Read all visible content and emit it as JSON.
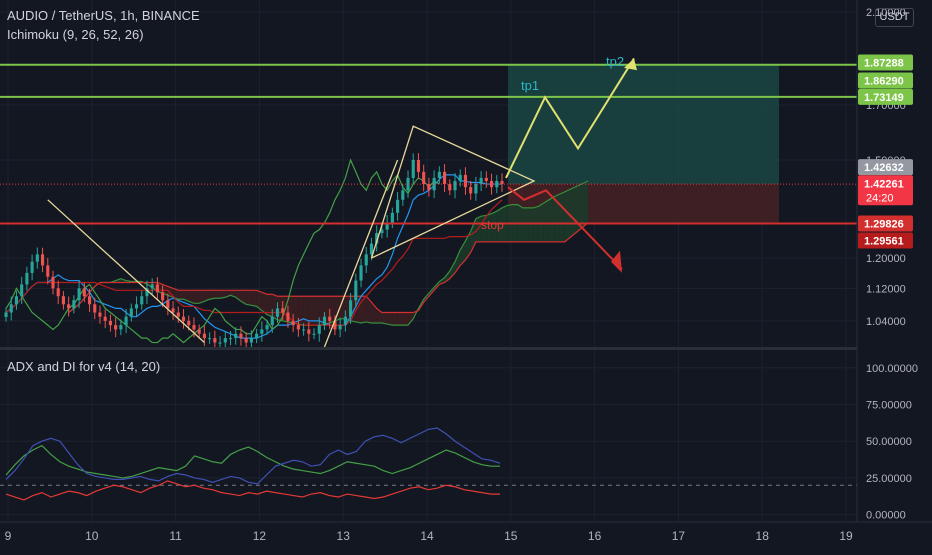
{
  "header": {
    "symbol_line": "AUDIO / TetherUS, 1h, BINANCE",
    "indicator_line": "Ichimoku (9, 26, 52, 26)",
    "currency_badge": "USDT"
  },
  "colors": {
    "background": "#131722",
    "grid": "#1e222d",
    "candle_up": "#26a69a",
    "candle_down": "#ef5350",
    "cloud_bull": "#1b3a2a",
    "cloud_bear": "#3a1e22",
    "tenkan": "#2196f3",
    "kijun": "#b71c1c",
    "chikou": "#43a047",
    "span_a": "#388e3c",
    "span_b": "#d32f2f",
    "drawing": "#e8d89a",
    "target_line": "#7cc548",
    "stop_line": "#d32f2f",
    "long_profit_zone": "#1a4a45",
    "long_stop_zone": "#4a2326",
    "adx": "#43a047",
    "di_plus": "#3f51b5",
    "di_minus": "#e53935"
  },
  "annotations": {
    "tp1": "tp1",
    "tp2": "tp2",
    "stop": "stop"
  },
  "chart_data": [
    {
      "type": "candlestick",
      "title": "AUDIO / TetherUS, 1h, BINANCE",
      "x_axis": {
        "tick_labels": [
          "9",
          "10",
          "11",
          "12",
          "13",
          "14",
          "15",
          "16",
          "17",
          "18",
          "19"
        ]
      },
      "y_axis": {
        "scale": "log",
        "range": [
          0.98,
          2.12
        ],
        "tick_labels": [
          "2.10000",
          "1.70000",
          "1.50000",
          "1.20000",
          "1.12000",
          "1.04000"
        ],
        "tick_values": [
          2.1,
          1.7,
          1.5,
          1.2,
          1.12,
          1.04
        ]
      },
      "price_labels": [
        {
          "text": "1.87288",
          "value": 1.87288,
          "color": "#7cc548"
        },
        {
          "text": "1.86290",
          "value": 1.8629,
          "color": "#7cc548"
        },
        {
          "text": "1.73149",
          "value": 1.73149,
          "color": "#7cc548"
        },
        {
          "text": "1.42632",
          "value": 1.42632,
          "color": "#9598a1"
        },
        {
          "text": "1.42261",
          "sub": "24:20",
          "value": 1.42261,
          "color": "#f23645"
        },
        {
          "text": "1.29826",
          "value": 1.29826,
          "color": "#d32f2f"
        },
        {
          "text": "1.29561",
          "value": 1.29561,
          "color": "#b71c1c"
        }
      ],
      "horizontal_lines": [
        {
          "name": "tp2",
          "value": 1.8629
        },
        {
          "name": "tp1",
          "value": 1.73149
        },
        {
          "name": "stop",
          "value": 1.29826
        }
      ],
      "closes": [
        1.06,
        1.08,
        1.1,
        1.13,
        1.16,
        1.19,
        1.21,
        1.18,
        1.15,
        1.12,
        1.1,
        1.08,
        1.07,
        1.09,
        1.12,
        1.1,
        1.08,
        1.06,
        1.05,
        1.04,
        1.03,
        1.02,
        1.03,
        1.05,
        1.07,
        1.08,
        1.1,
        1.12,
        1.13,
        1.11,
        1.09,
        1.07,
        1.06,
        1.05,
        1.04,
        1.03,
        1.02,
        1.01,
        1.0,
        1.0,
        0.99,
        0.99,
        1.0,
        1.0,
        1.01,
        1.0,
        0.99,
        1.0,
        1.01,
        1.02,
        1.03,
        1.05,
        1.07,
        1.06,
        1.04,
        1.03,
        1.02,
        1.02,
        1.01,
        1.01,
        1.03,
        1.05,
        1.04,
        1.02,
        1.03,
        1.05,
        1.09,
        1.14,
        1.18,
        1.21,
        1.24,
        1.27,
        1.28,
        1.3,
        1.33,
        1.37,
        1.4,
        1.44,
        1.5,
        1.46,
        1.42,
        1.4,
        1.44,
        1.46,
        1.42,
        1.4,
        1.43,
        1.45,
        1.41,
        1.39,
        1.42,
        1.44,
        1.43,
        1.41,
        1.43,
        1.42
      ],
      "ichimoku_span_a_end": 1.43,
      "ichimoku_span_b_end": 1.3
    },
    {
      "type": "line",
      "title": "ADX and DI for v4 (14, 20)",
      "y_axis": {
        "range": [
          -5,
          108
        ],
        "tick_labels": [
          "100.00000",
          "75.00000",
          "50.00000",
          "25.00000",
          "0.00000"
        ],
        "tick_values": [
          100,
          75,
          50,
          25,
          0
        ],
        "reference_line": 20
      },
      "series": [
        {
          "key": "adx",
          "values": [
            27,
            34,
            40,
            44,
            47,
            41,
            36,
            33,
            31,
            29,
            28,
            27,
            26,
            25,
            26,
            28,
            30,
            32,
            31,
            30,
            33,
            40,
            38,
            36,
            35,
            41,
            44,
            46,
            43,
            39,
            36,
            33,
            31,
            30,
            29,
            28,
            30,
            33,
            36,
            35,
            34,
            33,
            30,
            28,
            30,
            32,
            35,
            38,
            41,
            44,
            42,
            39,
            36,
            34,
            33,
            33
          ]
        },
        {
          "key": "di_plus",
          "values": [
            24,
            30,
            38,
            47,
            50,
            52,
            50,
            42,
            34,
            28,
            26,
            25,
            24,
            24,
            25,
            26,
            24,
            23,
            26,
            28,
            27,
            25,
            24,
            22,
            24,
            26,
            25,
            22,
            21,
            27,
            33,
            35,
            37,
            36,
            33,
            34,
            41,
            44,
            41,
            43,
            50,
            53,
            54,
            52,
            49,
            52,
            55,
            58,
            59,
            55,
            50,
            46,
            42,
            38,
            37,
            35
          ]
        },
        {
          "key": "di_minus",
          "values": [
            14,
            12,
            10,
            13,
            15,
            12,
            14,
            16,
            15,
            13,
            16,
            18,
            20,
            19,
            17,
            15,
            18,
            20,
            23,
            21,
            19,
            20,
            18,
            17,
            15,
            14,
            13,
            15,
            14,
            16,
            15,
            14,
            13,
            12,
            14,
            15,
            13,
            12,
            14,
            13,
            12,
            11,
            12,
            14,
            16,
            18,
            19,
            17,
            18,
            20,
            19,
            17,
            16,
            15,
            14,
            14
          ]
        }
      ]
    }
  ]
}
